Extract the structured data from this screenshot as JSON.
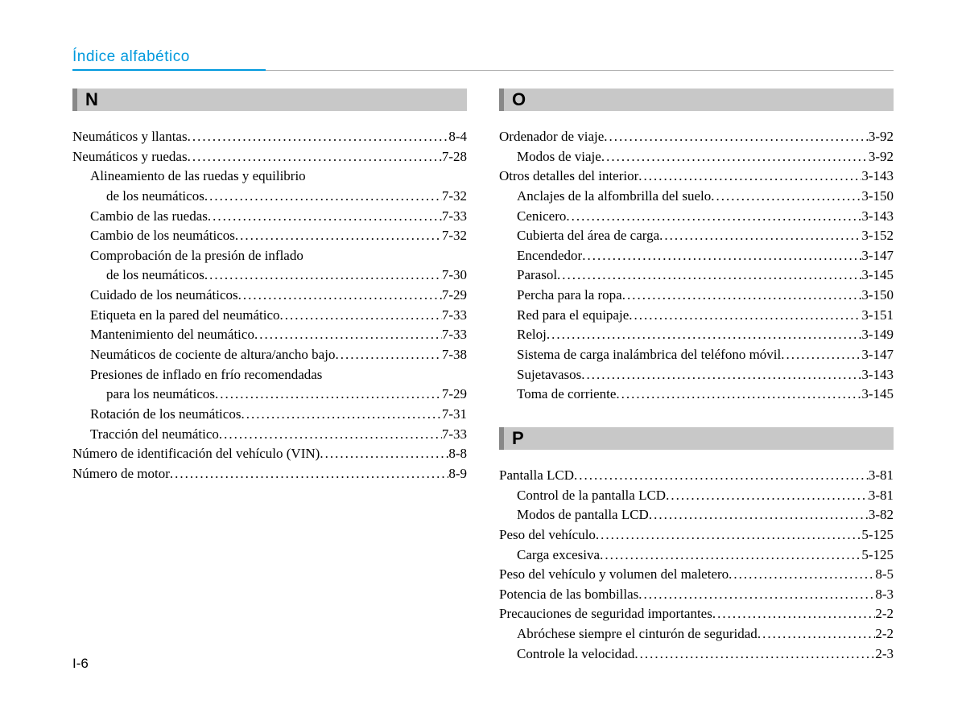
{
  "header": "Índice alfabético",
  "page_number": "I-6",
  "colors": {
    "accent": "#0099dd",
    "section_bg": "#c8c8c8",
    "section_border": "#888888",
    "text": "#000000"
  },
  "typography": {
    "body_family": "Times New Roman",
    "body_size_pt": 13,
    "header_family": "Arial",
    "header_size_pt": 14,
    "letter_size_pt": 17
  },
  "sections": {
    "N": {
      "letter": "N",
      "entries": [
        {
          "label": "Neumáticos y llantas",
          "page": "8-4",
          "level": 0
        },
        {
          "label": "Neumáticos y ruedas",
          "page": "7-28",
          "level": 0
        },
        {
          "label": "Alineamiento de las ruedas y equilibrio",
          "page": "",
          "level": 1,
          "nodots": true
        },
        {
          "label": "de los neumáticos",
          "page": "7-32",
          "level": 2
        },
        {
          "label": "Cambio de las ruedas",
          "page": "7-33",
          "level": 1
        },
        {
          "label": "Cambio de los neumáticos",
          "page": "7-32",
          "level": 1
        },
        {
          "label": "Comprobación de la presión de inflado",
          "page": "",
          "level": 1,
          "nodots": true
        },
        {
          "label": "de los neumáticos",
          "page": "7-30",
          "level": 2
        },
        {
          "label": "Cuidado de los neumáticos",
          "page": "7-29",
          "level": 1
        },
        {
          "label": "Etiqueta en la pared del neumático",
          "page": "7-33",
          "level": 1
        },
        {
          "label": "Mantenimiento del neumático",
          "page": "7-33",
          "level": 1
        },
        {
          "label": "Neumáticos de cociente de altura/ancho bajo",
          "page": "7-38",
          "level": 1
        },
        {
          "label": "Presiones de inflado en frío recomendadas",
          "page": "",
          "level": 1,
          "nodots": true
        },
        {
          "label": "para los neumáticos",
          "page": "7-29",
          "level": 2
        },
        {
          "label": "Rotación de los neumáticos",
          "page": "7-31",
          "level": 1
        },
        {
          "label": "Tracción del neumático",
          "page": "7-33",
          "level": 1
        },
        {
          "label": "Número de identificación del vehículo (VIN)",
          "page": "8-8",
          "level": 0
        },
        {
          "label": "Número de motor",
          "page": "8-9",
          "level": 0
        }
      ]
    },
    "O": {
      "letter": "O",
      "entries": [
        {
          "label": "Ordenador de viaje",
          "page": "3-92",
          "level": 0
        },
        {
          "label": "Modos de viaje",
          "page": "3-92",
          "level": 1
        },
        {
          "label": "Otros detalles del interior",
          "page": "3-143",
          "level": 0
        },
        {
          "label": "Anclajes de la alfombrilla del suelo",
          "page": "3-150",
          "level": 1
        },
        {
          "label": "Cenicero",
          "page": "3-143",
          "level": 1
        },
        {
          "label": "Cubierta del área de carga",
          "page": "3-152",
          "level": 1
        },
        {
          "label": "Encendedor",
          "page": "3-147",
          "level": 1
        },
        {
          "label": "Parasol",
          "page": "3-145",
          "level": 1
        },
        {
          "label": "Percha para la ropa",
          "page": "3-150",
          "level": 1
        },
        {
          "label": "Red para el equipaje",
          "page": "3-151",
          "level": 1
        },
        {
          "label": "Reloj",
          "page": "3-149",
          "level": 1
        },
        {
          "label": "Sistema de carga inalámbrica del teléfono móvil",
          "page": "3-147",
          "level": 1
        },
        {
          "label": "Sujetavasos",
          "page": "3-143",
          "level": 1
        },
        {
          "label": "Toma de corriente",
          "page": "3-145",
          "level": 1
        }
      ]
    },
    "P": {
      "letter": "P",
      "entries": [
        {
          "label": "Pantalla LCD",
          "page": "3-81",
          "level": 0
        },
        {
          "label": "Control de la pantalla LCD",
          "page": "3-81",
          "level": 1
        },
        {
          "label": "Modos de pantalla LCD",
          "page": "3-82",
          "level": 1
        },
        {
          "label": "Peso del vehículo",
          "page": "5-125",
          "level": 0
        },
        {
          "label": "Carga excesiva",
          "page": "5-125",
          "level": 1
        },
        {
          "label": "Peso del vehículo y volumen del maletero",
          "page": "8-5",
          "level": 0
        },
        {
          "label": "Potencia de las bombillas",
          "page": "8-3",
          "level": 0
        },
        {
          "label": "Precauciones de seguridad importantes",
          "page": "2-2",
          "level": 0
        },
        {
          "label": "Abróchese siempre el cinturón de seguridad",
          "page": "2-2",
          "level": 1
        },
        {
          "label": "Controle la velocidad",
          "page": "2-3",
          "level": 1
        }
      ]
    }
  }
}
